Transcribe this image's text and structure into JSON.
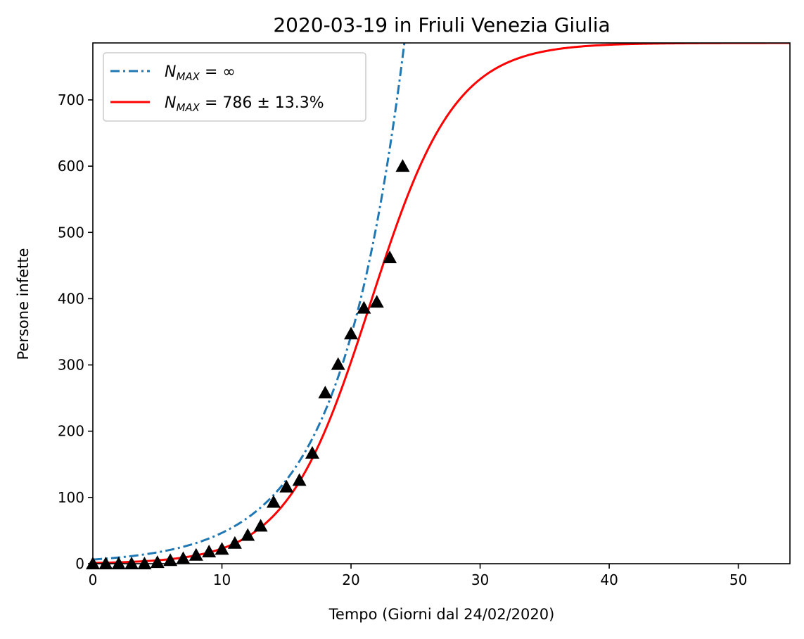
{
  "chart_data": {
    "type": "line",
    "title": "2020-03-19 in Friuli Venezia Giulia",
    "xlabel": "Tempo (Giorni dal 24/02/2020)",
    "ylabel": "Persone infette",
    "xlim": [
      0,
      54
    ],
    "ylim": [
      0,
      786
    ],
    "x_ticks": [
      0,
      10,
      20,
      30,
      40,
      50
    ],
    "y_ticks": [
      0,
      100,
      200,
      300,
      400,
      500,
      600,
      700
    ],
    "grid": false,
    "legend_position": "upper-left",
    "series": [
      {
        "name_parts": {
          "symbol": "N",
          "subscript": "MAX",
          "value": " = ∞"
        },
        "style": "dash-dot",
        "color": "#1f77b4",
        "model": "exponential",
        "params": {
          "a": 6.3,
          "b": 0.2
        }
      },
      {
        "name_parts": {
          "symbol": "N",
          "subscript": "MAX",
          "value": " = 786 ± 13.3%"
        },
        "style": "solid",
        "color": "#ff0000",
        "model": "logistic",
        "params": {
          "K": 786,
          "r": 0.305,
          "t0": 21.5
        }
      },
      {
        "name": "",
        "style": "marker-triangle",
        "color": "#000000",
        "x": [
          0,
          1,
          2,
          3,
          4,
          5,
          6,
          7,
          8,
          9,
          10,
          11,
          12,
          13,
          14,
          15,
          16,
          17,
          18,
          19,
          20,
          21,
          22,
          23,
          24
        ],
        "y": [
          0,
          0,
          0,
          0,
          0,
          2,
          5,
          8,
          13,
          18,
          22,
          31,
          43,
          57,
          93,
          116,
          126,
          167,
          258,
          301,
          347,
          386,
          395,
          462,
          600
        ]
      }
    ]
  }
}
